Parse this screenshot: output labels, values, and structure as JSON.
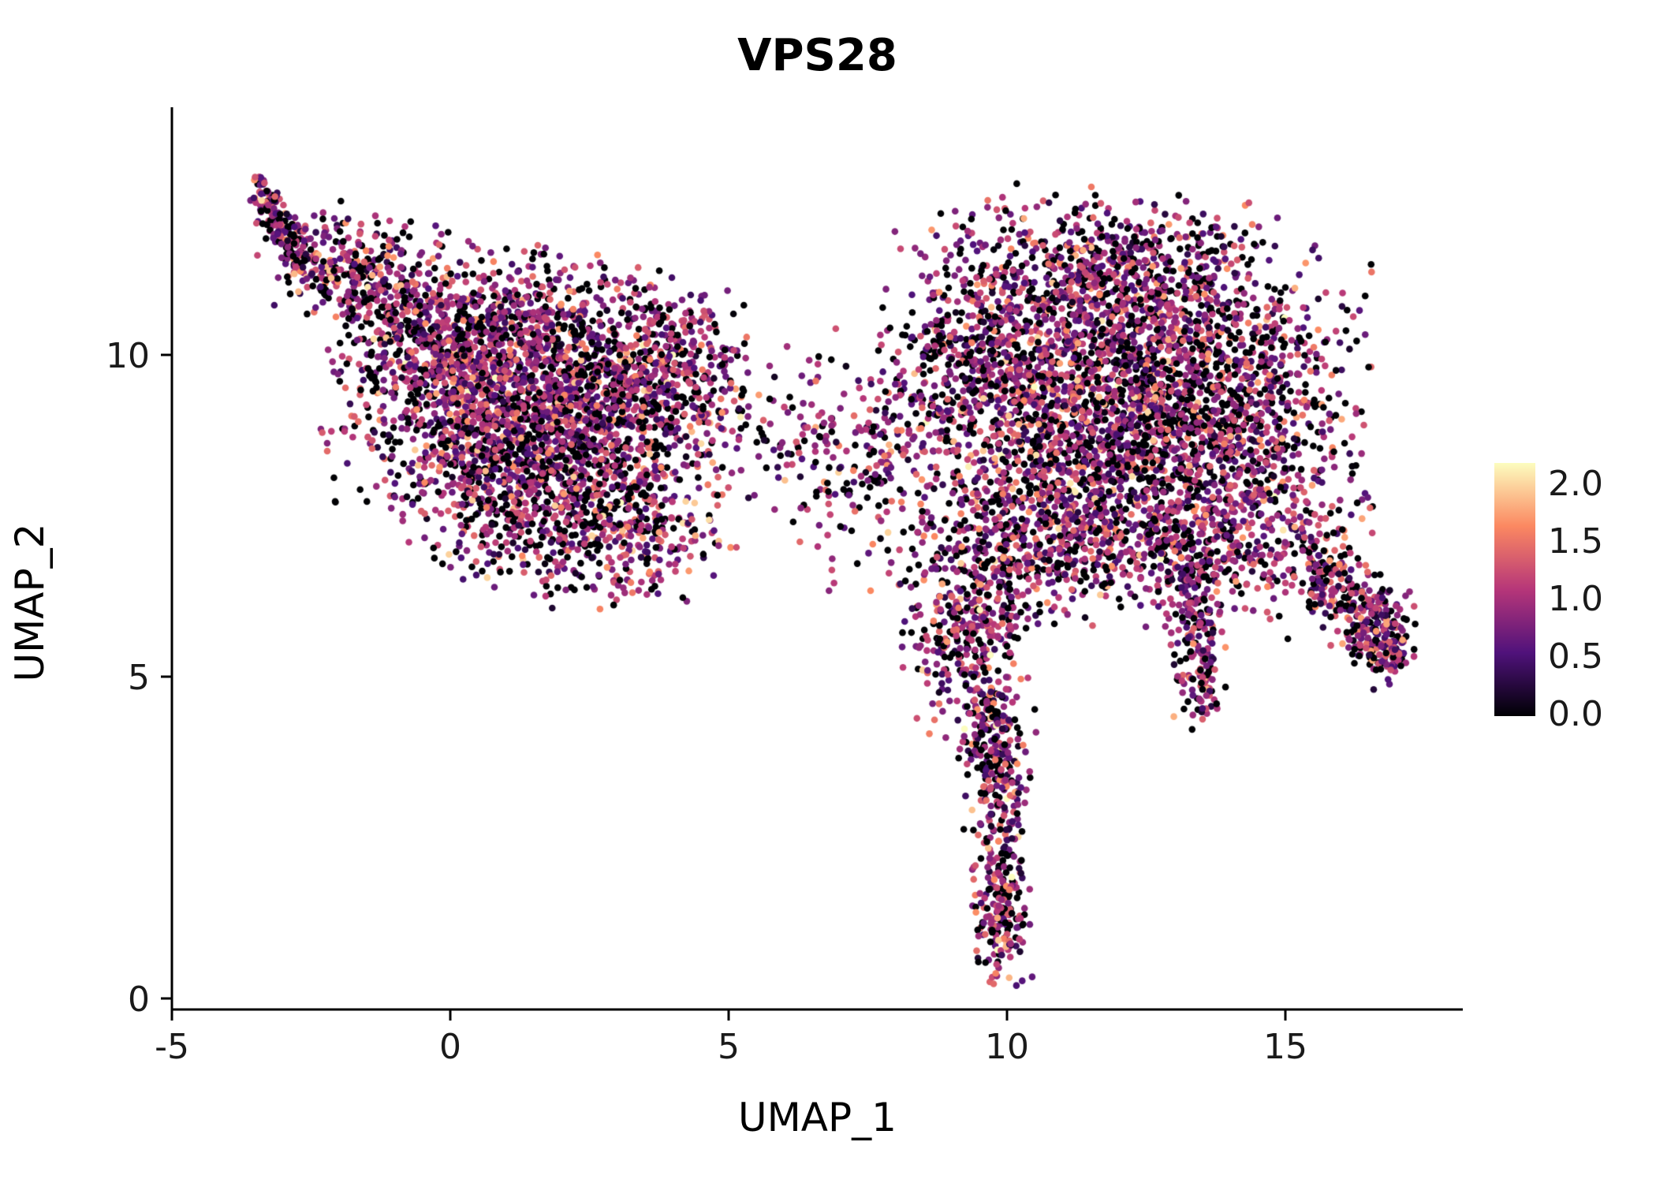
{
  "chart_data": {
    "type": "scatter",
    "title": "VPS28",
    "xlabel": "UMAP_1",
    "ylabel": "UMAP_2",
    "x_ticks": [
      -5,
      0,
      5,
      10,
      15
    ],
    "x_tick_labels": [
      "-5",
      "0",
      "5",
      "10",
      "15"
    ],
    "y_ticks": [
      0,
      5,
      10
    ],
    "y_tick_labels": [
      "0",
      "5",
      "10"
    ],
    "xlim": [
      -5.3,
      17.8
    ],
    "ylim": [
      -0.9,
      13.9
    ],
    "grid": false,
    "legend_position": "right",
    "background": "#ffffff",
    "point_radius": 4.3,
    "seed": 42,
    "colorbar": {
      "ticks": [
        "0.0",
        "0.5",
        "1.0",
        "1.5",
        "2.0"
      ],
      "tick_values": [
        0,
        0.5,
        1.0,
        1.5,
        2.0
      ],
      "vmax": 2.2,
      "colormap": "magma",
      "stops": [
        "#000004",
        "#50127B",
        "#B63679",
        "#FB8861",
        "#FCFDBF"
      ]
    },
    "expression": {
      "zero_fraction": 0.27,
      "mean": 0.95,
      "sd": 0.45,
      "max": 2.2
    },
    "clusters": [
      {
        "type": "line",
        "x1": -3.45,
        "y1": 12.65,
        "x2": -2.7,
        "y2": 11.4,
        "w": 0.12,
        "n": 160
      },
      {
        "type": "line",
        "x1": -2.8,
        "y1": 11.6,
        "x2": -0.6,
        "y2": 10.7,
        "w": 0.38,
        "n": 280
      },
      {
        "type": "gauss",
        "cx": -1.2,
        "cy": 11.4,
        "sx": 0.8,
        "sy": 0.45,
        "rot": 0,
        "n": 90
      },
      {
        "type": "gauss",
        "cx": 1.5,
        "cy": 9.4,
        "sx": 1.65,
        "sy": 1.0,
        "rot": -8,
        "n": 2300
      },
      {
        "type": "gauss",
        "cx": 0.3,
        "cy": 10.2,
        "sx": 0.9,
        "sy": 0.5,
        "rot": 0,
        "n": 250
      },
      {
        "type": "gauss",
        "cx": 2.9,
        "cy": 7.3,
        "sx": 0.95,
        "sy": 0.55,
        "rot": 0,
        "n": 380
      },
      {
        "type": "gauss",
        "cx": 0.9,
        "cy": 7.9,
        "sx": 0.8,
        "sy": 0.7,
        "rot": 0,
        "n": 300
      },
      {
        "type": "gauss",
        "cx": 3.9,
        "cy": 9.9,
        "sx": 0.7,
        "sy": 0.6,
        "rot": 0,
        "n": 250
      },
      {
        "type": "gauss",
        "cx": 6.3,
        "cy": 8.7,
        "sx": 0.8,
        "sy": 0.75,
        "rot": 0,
        "n": 120
      },
      {
        "type": "gauss",
        "cx": 7.5,
        "cy": 8.3,
        "sx": 0.6,
        "sy": 0.9,
        "rot": 0,
        "n": 130
      },
      {
        "type": "gauss",
        "cx": 12.3,
        "cy": 9.4,
        "sx": 1.85,
        "sy": 1.3,
        "rot": 0,
        "n": 2900
      },
      {
        "type": "gauss",
        "cx": 11.6,
        "cy": 11.4,
        "sx": 1.3,
        "sy": 0.55,
        "rot": 0,
        "n": 330
      },
      {
        "type": "gauss",
        "cx": 9.4,
        "cy": 9.8,
        "sx": 0.85,
        "sy": 0.95,
        "rot": 0,
        "n": 380
      },
      {
        "type": "gauss",
        "cx": 10.2,
        "cy": 7.2,
        "sx": 0.9,
        "sy": 0.65,
        "rot": 0,
        "n": 350
      },
      {
        "type": "gauss",
        "cx": 12.6,
        "cy": 6.9,
        "sx": 1.1,
        "sy": 0.5,
        "rot": 0,
        "n": 300
      },
      {
        "type": "gauss",
        "cx": 14.6,
        "cy": 7.6,
        "sx": 0.9,
        "sy": 0.8,
        "rot": -20,
        "n": 300
      },
      {
        "type": "gauss",
        "cx": 9.3,
        "cy": 5.7,
        "sx": 0.55,
        "sy": 0.75,
        "rot": 0,
        "n": 330
      },
      {
        "type": "line",
        "x1": 9.6,
        "y1": 4.9,
        "x2": 9.9,
        "y2": 2.8,
        "w": 0.3,
        "n": 260
      },
      {
        "type": "gauss",
        "cx": 9.9,
        "cy": 1.5,
        "sx": 0.26,
        "sy": 0.7,
        "rot": 0,
        "n": 230
      },
      {
        "type": "line",
        "x1": 13.3,
        "y1": 6.9,
        "x2": 13.5,
        "y2": 4.5,
        "w": 0.22,
        "n": 210
      },
      {
        "type": "line",
        "x1": 15.4,
        "y1": 6.9,
        "x2": 16.9,
        "y2": 5.4,
        "w": 0.3,
        "n": 280
      },
      {
        "type": "gauss",
        "cx": 16.8,
        "cy": 5.6,
        "sx": 0.25,
        "sy": 0.35,
        "rot": 0,
        "n": 130
      }
    ]
  }
}
